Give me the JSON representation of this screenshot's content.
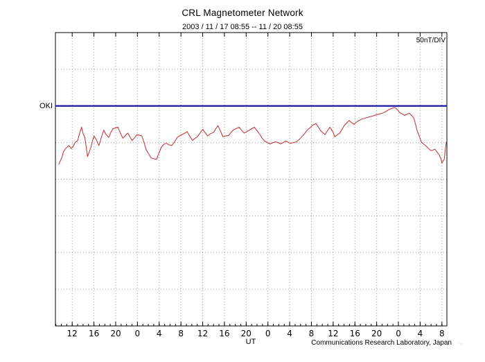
{
  "header": {
    "title": "CRL Magnetometer Network",
    "subtitle": "2003 / 11 / 17   08:55 -- 11 / 20   08:55"
  },
  "plot": {
    "scale_label": "50nT/DIV",
    "station_label": "OKI",
    "xlabel": "UT"
  },
  "footer": {
    "credit": "Communications Research Laboratory, Japan",
    "fine_print": "· ,"
  },
  "chart_data": {
    "type": "line",
    "title": "CRL Magnetometer Network",
    "subtitle": "2003 / 11 / 17  08:55 -- 11 / 20  08:55",
    "xlabel": "UT",
    "y_scale_label": "50nT/DIV",
    "x_span_hours": 72,
    "x_tick_labels": [
      "12",
      "16",
      "20",
      "0",
      "4",
      "8",
      "12",
      "16",
      "20",
      "0",
      "4",
      "8",
      "12",
      "16",
      "20",
      "0",
      "4",
      "8"
    ],
    "x_tick_hours": [
      3.083,
      7.083,
      11.083,
      15.083,
      19.083,
      23.083,
      27.083,
      31.083,
      35.083,
      39.083,
      43.083,
      47.083,
      51.083,
      55.083,
      59.083,
      63.083,
      67.083,
      71.083
    ],
    "grid": {
      "divisions_y": 8,
      "nT_per_div": 50,
      "baseline_div_from_top": 2
    },
    "baseline": {
      "label": "OKI",
      "value": 0,
      "color": "#1818a8"
    },
    "legend_position": "none",
    "series": [
      {
        "name": "OKI",
        "unit": "nT relative to baseline",
        "color": "#c22b2b",
        "points": [
          [
            0.6,
            -80
          ],
          [
            1.2,
            -70
          ],
          [
            1.5,
            -62
          ],
          [
            2.0,
            -57
          ],
          [
            2.5,
            -54
          ],
          [
            2.9,
            -58
          ],
          [
            3.2,
            -56
          ],
          [
            3.6,
            -50
          ],
          [
            4.1,
            -47
          ],
          [
            4.5,
            -36
          ],
          [
            4.8,
            -29
          ],
          [
            5.1,
            -38
          ],
          [
            5.4,
            -43
          ],
          [
            5.7,
            -58
          ],
          [
            5.9,
            -69
          ],
          [
            6.2,
            -63
          ],
          [
            6.5,
            -57
          ],
          [
            6.8,
            -48
          ],
          [
            7.1,
            -41
          ],
          [
            7.5,
            -46
          ],
          [
            8.0,
            -54
          ],
          [
            8.4,
            -44
          ],
          [
            8.9,
            -33
          ],
          [
            9.3,
            -39
          ],
          [
            9.8,
            -43
          ],
          [
            10.2,
            -36
          ],
          [
            10.6,
            -31
          ],
          [
            11.0,
            -30
          ],
          [
            11.5,
            -29
          ],
          [
            12.0,
            -38
          ],
          [
            12.4,
            -44
          ],
          [
            12.9,
            -40
          ],
          [
            13.3,
            -37
          ],
          [
            13.7,
            -42
          ],
          [
            14.1,
            -47
          ],
          [
            14.6,
            -43
          ],
          [
            15.0,
            -39
          ],
          [
            15.5,
            -40
          ],
          [
            15.9,
            -41
          ],
          [
            16.3,
            -50
          ],
          [
            16.7,
            -60
          ],
          [
            17.2,
            -66
          ],
          [
            17.6,
            -71
          ],
          [
            18.1,
            -72
          ],
          [
            18.6,
            -73
          ],
          [
            19.0,
            -65
          ],
          [
            19.5,
            -56
          ],
          [
            20.0,
            -52
          ],
          [
            20.4,
            -51
          ],
          [
            20.9,
            -53
          ],
          [
            21.4,
            -54
          ],
          [
            21.9,
            -49
          ],
          [
            22.4,
            -43
          ],
          [
            22.8,
            -41
          ],
          [
            23.3,
            -39
          ],
          [
            23.8,
            -37
          ],
          [
            24.2,
            -35
          ],
          [
            24.7,
            -41
          ],
          [
            25.2,
            -47
          ],
          [
            25.7,
            -44
          ],
          [
            26.1,
            -42
          ],
          [
            26.6,
            -37
          ],
          [
            27.1,
            -32
          ],
          [
            27.6,
            -37
          ],
          [
            28.0,
            -41
          ],
          [
            28.5,
            -38
          ],
          [
            29.1,
            -36
          ],
          [
            29.5,
            -31
          ],
          [
            29.9,
            -27
          ],
          [
            30.4,
            -35
          ],
          [
            30.8,
            -42
          ],
          [
            31.3,
            -41
          ],
          [
            31.9,
            -40
          ],
          [
            32.3,
            -36
          ],
          [
            32.7,
            -33
          ],
          [
            33.2,
            -31
          ],
          [
            33.8,
            -29
          ],
          [
            34.2,
            -33
          ],
          [
            34.7,
            -37
          ],
          [
            35.2,
            -35
          ],
          [
            35.7,
            -33
          ],
          [
            36.1,
            -31
          ],
          [
            36.6,
            -29
          ],
          [
            37.1,
            -34
          ],
          [
            37.6,
            -39
          ],
          [
            38.0,
            -44
          ],
          [
            38.5,
            -48
          ],
          [
            39.0,
            -50
          ],
          [
            39.5,
            -52
          ],
          [
            40.0,
            -50
          ],
          [
            40.5,
            -49
          ],
          [
            41.0,
            -50
          ],
          [
            41.4,
            -52
          ],
          [
            41.9,
            -50
          ],
          [
            42.4,
            -48
          ],
          [
            42.9,
            -50
          ],
          [
            43.3,
            -51
          ],
          [
            43.8,
            -50
          ],
          [
            44.3,
            -49
          ],
          [
            44.8,
            -46
          ],
          [
            45.2,
            -43
          ],
          [
            45.8,
            -38
          ],
          [
            46.3,
            -33
          ],
          [
            46.8,
            -30
          ],
          [
            47.2,
            -27
          ],
          [
            47.9,
            -24
          ],
          [
            48.3,
            -28
          ],
          [
            48.7,
            -33
          ],
          [
            49.1,
            -36
          ],
          [
            49.6,
            -39
          ],
          [
            50.0,
            -34
          ],
          [
            50.5,
            -29
          ],
          [
            51.0,
            -35
          ],
          [
            51.4,
            -42
          ],
          [
            51.9,
            -39
          ],
          [
            52.3,
            -37
          ],
          [
            52.7,
            -32
          ],
          [
            53.1,
            -27
          ],
          [
            53.6,
            -23
          ],
          [
            54.0,
            -20
          ],
          [
            54.5,
            -23
          ],
          [
            54.9,
            -25
          ],
          [
            55.4,
            -22
          ],
          [
            55.8,
            -20
          ],
          [
            56.3,
            -18
          ],
          [
            56.8,
            -17
          ],
          [
            57.2,
            -16
          ],
          [
            57.7,
            -15
          ],
          [
            58.2,
            -14
          ],
          [
            58.7,
            -13
          ],
          [
            59.1,
            -12
          ],
          [
            59.6,
            -11
          ],
          [
            60.1,
            -10
          ],
          [
            60.7,
            -8
          ],
          [
            61.1,
            -6
          ],
          [
            61.6,
            -4
          ],
          [
            62.0,
            -3
          ],
          [
            62.4,
            -2
          ],
          [
            62.9,
            -5
          ],
          [
            63.3,
            -9
          ],
          [
            63.8,
            -11
          ],
          [
            64.2,
            -13
          ],
          [
            64.7,
            -11
          ],
          [
            65.1,
            -10
          ],
          [
            65.5,
            -13
          ],
          [
            65.9,
            -16
          ],
          [
            66.2,
            -24
          ],
          [
            66.5,
            -33
          ],
          [
            66.9,
            -41
          ],
          [
            67.3,
            -49
          ],
          [
            67.7,
            -52
          ],
          [
            68.2,
            -55
          ],
          [
            68.6,
            -58
          ],
          [
            69.1,
            -61
          ],
          [
            69.5,
            -60
          ],
          [
            69.8,
            -59
          ],
          [
            70.2,
            -63
          ],
          [
            70.6,
            -67
          ],
          [
            70.9,
            -72
          ],
          [
            71.1,
            -78
          ],
          [
            71.3,
            -75
          ],
          [
            71.5,
            -73
          ],
          [
            71.7,
            -60
          ],
          [
            71.9,
            -49
          ]
        ]
      }
    ]
  }
}
